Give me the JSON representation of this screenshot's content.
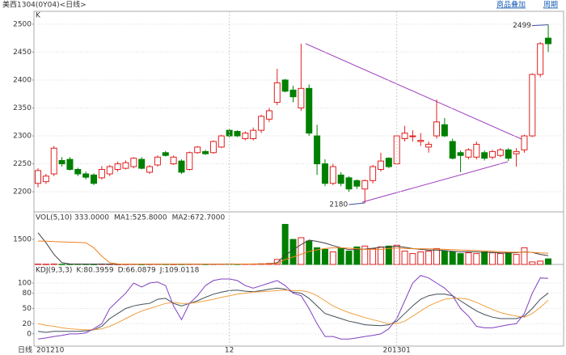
{
  "header": {
    "title": "美西1304(0Y04)<日线>",
    "links": [
      "商品叠加",
      "周期"
    ]
  },
  "chart_data": [
    {
      "type": "candlestick",
      "label": "K",
      "up_color": "#e02020",
      "down_color": "#008000",
      "grid": true,
      "ylim": [
        2164,
        2523
      ],
      "yticks": [
        2200,
        2250,
        2300,
        2350,
        2400,
        2450,
        2500
      ],
      "open": [
        2215,
        2218,
        2232,
        2256,
        2258,
        2240,
        2232,
        2230,
        2225,
        2232,
        2240,
        2242,
        2245,
        2258,
        2235,
        2248,
        2270,
        2250,
        2255,
        2240,
        2270,
        2272,
        2270,
        2280,
        2310,
        2308,
        2295,
        2295,
        2310,
        2330,
        2360,
        2400,
        2382,
        2350,
        2385,
        2300,
        2250,
        2215,
        2230,
        2225,
        2220,
        2205,
        2220,
        2240,
        2260,
        2250,
        2295,
        2300,
        2290,
        2280,
        2300,
        2320,
        2290,
        2270,
        2262,
        2262,
        2270,
        2262,
        2265,
        2275,
        2268,
        2275,
        2300,
        2410,
        2475
      ],
      "high": [
        2242,
        2232,
        2282,
        2262,
        2262,
        2243,
        2236,
        2233,
        2246,
        2248,
        2254,
        2256,
        2262,
        2262,
        2248,
        2265,
        2273,
        2265,
        2258,
        2272,
        2282,
        2275,
        2292,
        2302,
        2312,
        2310,
        2308,
        2315,
        2338,
        2350,
        2420,
        2402,
        2390,
        2465,
        2392,
        2320,
        2258,
        2250,
        2235,
        2228,
        2222,
        2222,
        2248,
        2270,
        2262,
        2302,
        2318,
        2310,
        2305,
        2290,
        2365,
        2332,
        2295,
        2274,
        2278,
        2290,
        2274,
        2275,
        2278,
        2278,
        2278,
        2302,
        2412,
        2468,
        2499
      ],
      "low": [
        2208,
        2214,
        2228,
        2245,
        2238,
        2228,
        2222,
        2212,
        2222,
        2228,
        2236,
        2240,
        2242,
        2240,
        2232,
        2245,
        2263,
        2248,
        2232,
        2238,
        2268,
        2266,
        2268,
        2278,
        2298,
        2298,
        2292,
        2292,
        2305,
        2325,
        2355,
        2378,
        2360,
        2345,
        2300,
        2230,
        2210,
        2212,
        2210,
        2200,
        2205,
        2180,
        2215,
        2236,
        2242,
        2248,
        2290,
        2290,
        2282,
        2270,
        2295,
        2298,
        2258,
        2235,
        2258,
        2258,
        2256,
        2258,
        2262,
        2255,
        2245,
        2270,
        2298,
        2405,
        2450
      ],
      "close": [
        2238,
        2228,
        2278,
        2250,
        2240,
        2232,
        2226,
        2215,
        2240,
        2245,
        2250,
        2252,
        2260,
        2242,
        2245,
        2262,
        2265,
        2262,
        2235,
        2270,
        2280,
        2268,
        2290,
        2300,
        2300,
        2300,
        2305,
        2310,
        2335,
        2345,
        2395,
        2380,
        2370,
        2385,
        2305,
        2250,
        2215,
        2245,
        2215,
        2205,
        2210,
        2220,
        2245,
        2255,
        2245,
        2300,
        2305,
        2300,
        2292,
        2285,
        2325,
        2300,
        2260,
        2265,
        2275,
        2285,
        2260,
        2272,
        2275,
        2260,
        2272,
        2300,
        2410,
        2465,
        2465
      ],
      "annotations": [
        {
          "label": "2499",
          "x": 64,
          "y": 2499
        },
        {
          "label": "2180",
          "x": 41,
          "y": 2180
        }
      ]
    },
    {
      "type": "volume",
      "ylim": [
        0,
        3100
      ],
      "yticks": [
        1500
      ],
      "series": [
        {
          "name": "VOL(5,10) 333.0000",
          "color": "#404040",
          "values": [
            20,
            15,
            25,
            10,
            15,
            20,
            15,
            10,
            20,
            15,
            10,
            15,
            20,
            10,
            15,
            20,
            15,
            10,
            15,
            20,
            25,
            15,
            20,
            25,
            30,
            20,
            25,
            30,
            40,
            60,
            300,
            2400,
            1500,
            1600,
            1400,
            1000,
            900,
            750,
            950,
            800,
            1050,
            1100,
            950,
            1050,
            1100,
            1150,
            800,
            650,
            750,
            800,
            950,
            800,
            750,
            650,
            700,
            650,
            750,
            700,
            650,
            700,
            600,
            1000,
            150,
            200,
            333
          ]
        },
        {
          "name": "MA1:525.8000",
          "color": "#404040",
          "values": [
            1900,
            1300,
            600,
            100,
            30,
            25,
            20,
            18,
            17,
            16,
            16,
            15,
            15,
            15,
            16,
            16,
            16,
            16,
            15,
            16,
            17,
            18,
            19,
            20,
            23,
            23,
            24,
            26,
            30,
            35,
            100,
            560,
            870,
            1190,
            1460,
            1380,
            1280,
            1130,
            1000,
            880,
            890,
            920,
            970,
            1030,
            1050,
            1090,
            1030,
            950,
            900,
            860,
            860,
            830,
            790,
            750,
            760,
            750,
            720,
            720,
            690,
            680,
            700,
            750,
            720,
            600,
            525.8
          ]
        },
        {
          "name": "MA2:672.7000",
          "color": "#f08020",
          "values": [
            1400,
            1390,
            1370,
            1350,
            1330,
            1320,
            1300,
            1000,
            500,
            100,
            30,
            25,
            20,
            18,
            17,
            16,
            16,
            15,
            15,
            16,
            17,
            17,
            18,
            19,
            21,
            22,
            23,
            25,
            27,
            30,
            60,
            290,
            440,
            610,
            780,
            870,
            950,
            1000,
            1000,
            970,
            940,
            900,
            900,
            900,
            950,
            990,
            960,
            940,
            940,
            930,
            920,
            900,
            880,
            860,
            850,
            840,
            810,
            790,
            760,
            740,
            730,
            735,
            720,
            690,
            672.7
          ]
        }
      ]
    },
    {
      "type": "line",
      "title": "KDJ(9,3,3)",
      "ylim": [
        -24,
        135
      ],
      "yticks": [
        0,
        20,
        50,
        80,
        100
      ],
      "grid": true,
      "x_axis_label": "日线",
      "categories": [
        "201210",
        null,
        null,
        null,
        null,
        null,
        null,
        null,
        null,
        null,
        null,
        null,
        null,
        null,
        null,
        null,
        null,
        null,
        null,
        null,
        null,
        null,
        null,
        null,
        "12",
        null,
        null,
        null,
        null,
        null,
        null,
        null,
        null,
        null,
        null,
        null,
        null,
        null,
        null,
        null,
        null,
        null,
        null,
        null,
        null,
        "201301",
        null,
        null,
        null,
        null,
        null,
        null,
        null,
        null,
        null,
        null,
        null,
        null,
        null,
        null,
        null,
        null,
        null,
        null,
        null
      ],
      "series": [
        {
          "name": "K:80.3959",
          "color": "#40505a",
          "values": [
            5,
            3,
            5,
            5,
            5,
            5,
            6,
            8,
            15,
            30,
            40,
            50,
            55,
            58,
            60,
            68,
            70,
            60,
            55,
            60,
            65,
            72,
            78,
            82,
            85,
            86,
            84,
            83,
            85,
            88,
            90,
            88,
            82,
            80,
            70,
            55,
            40,
            35,
            30,
            25,
            22,
            18,
            17,
            16,
            18,
            25,
            40,
            55,
            68,
            75,
            78,
            78,
            75,
            65,
            55,
            45,
            38,
            33,
            30,
            30,
            30,
            35,
            50,
            68,
            80.3959
          ]
        },
        {
          "name": "D:66.0879",
          "color": "#f0a040",
          "values": [
            20,
            17,
            15,
            12,
            10,
            9,
            8,
            8,
            10,
            15,
            22,
            30,
            38,
            45,
            50,
            55,
            60,
            62,
            60,
            60,
            62,
            65,
            68,
            72,
            75,
            78,
            80,
            82,
            83,
            84,
            85,
            86,
            85,
            85,
            82,
            75,
            65,
            55,
            48,
            42,
            37,
            32,
            28,
            24,
            20,
            20,
            25,
            35,
            45,
            55,
            62,
            68,
            70,
            70,
            68,
            62,
            55,
            48,
            42,
            38,
            35,
            33,
            40,
            52,
            66.0879
          ]
        },
        {
          "name": "J:109.0118",
          "color": "#8040c0",
          "values": [
            -10,
            -8,
            -5,
            -3,
            0,
            0,
            2,
            10,
            20,
            50,
            65,
            80,
            100,
            92,
            100,
            102,
            95,
            55,
            28,
            60,
            75,
            95,
            105,
            108,
            108,
            105,
            95,
            90,
            95,
            100,
            105,
            95,
            80,
            75,
            50,
            20,
            -5,
            -5,
            -10,
            -10,
            -8,
            -5,
            -3,
            0,
            10,
            30,
            65,
            100,
            115,
            110,
            100,
            90,
            75,
            50,
            35,
            15,
            12,
            12,
            15,
            18,
            20,
            40,
            80,
            110,
            109.0118
          ]
        }
      ]
    }
  ]
}
